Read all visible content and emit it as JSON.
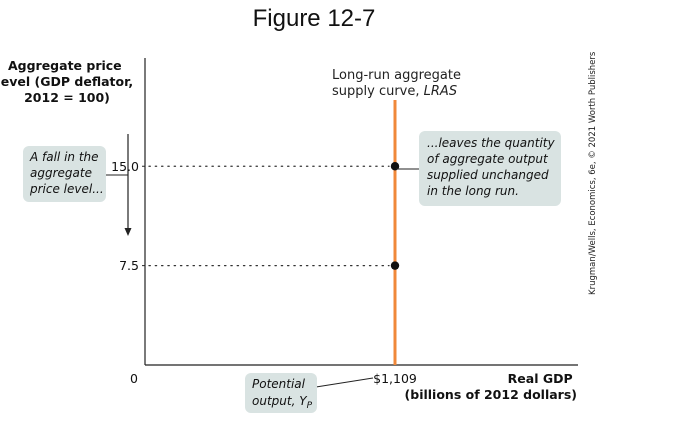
{
  "figure_title": "Figure 12-7",
  "credit": "Krugman/Wells, Economics, 6e, © 2021 Worth Publishers",
  "colors": {
    "lras": "#f0883a",
    "axis": "#222222",
    "callout_bg": "#d9e3e2",
    "point": "#111111"
  },
  "chart_data": {
    "type": "line",
    "title": "Figure 12-7",
    "ylabel_lines": [
      "Aggregate price",
      "level (GDP deflator,",
      "2012 = 100)"
    ],
    "xlabel_lines": [
      "Real GDP",
      "(billions of 2012 dollars)"
    ],
    "origin_label": "0",
    "ylim": [
      0,
      20
    ],
    "y_ticks": [
      {
        "value": 15.0,
        "label": "15.0"
      },
      {
        "value": 7.5,
        "label": "7.5"
      }
    ],
    "x_ticks": [
      {
        "value": 1109,
        "label": "$1,109"
      }
    ],
    "series": [
      {
        "name": "Long-run aggregate supply curve, LRAS",
        "x_value": 1109,
        "y_range": [
          0,
          20
        ]
      }
    ],
    "points": [
      {
        "x": 1109,
        "y": 15.0
      },
      {
        "x": 1109,
        "y": 7.5
      }
    ],
    "lras_label_lines": [
      "Long-run aggregate",
      "supply curve, "
    ],
    "lras_label_italic": "LRAS",
    "annotations": {
      "left": [
        "A fall in the",
        "aggregate",
        "price level..."
      ],
      "right": [
        "...leaves the quantity",
        "of aggregate output",
        "supplied unchanged",
        "in the long run."
      ],
      "potential": [
        "Potential",
        "output, "
      ],
      "potential_symbol": "Y",
      "potential_subscript": "P"
    },
    "grid": false
  }
}
